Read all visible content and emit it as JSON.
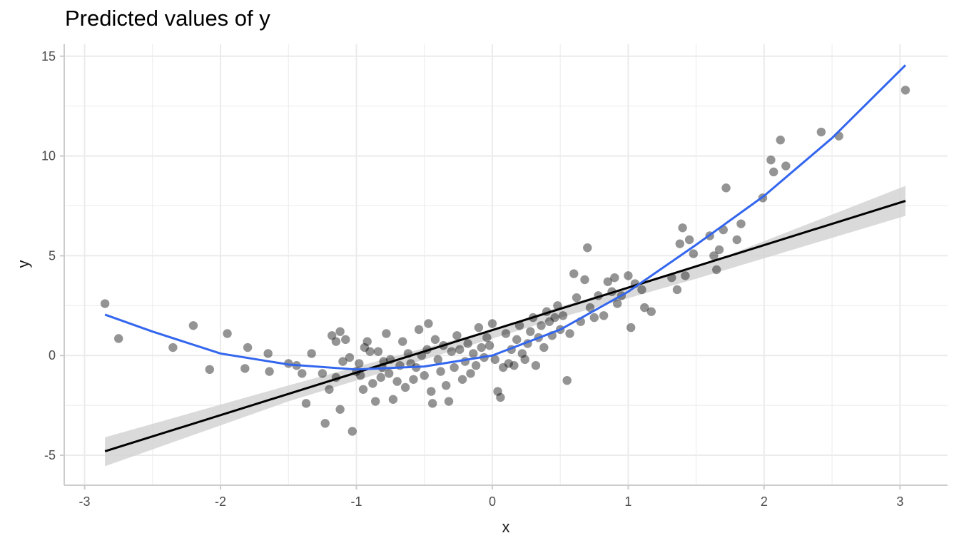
{
  "chart_data": {
    "type": "scatter",
    "title": "Predicted values of y",
    "xlabel": "x",
    "ylabel": "y",
    "xlim": [
      -3.15,
      3.35
    ],
    "ylim": [
      -6.5,
      15.6
    ],
    "x_ticks": [
      -3,
      -2,
      -1,
      0,
      1,
      2,
      3
    ],
    "x_tick_labels": [
      "-3",
      "-2",
      "-1",
      "0",
      "1",
      "2",
      "3"
    ],
    "y_ticks": [
      -5,
      0,
      5,
      10,
      15
    ],
    "y_tick_labels": [
      "-5",
      "0",
      "5",
      "10",
      "15"
    ],
    "grid": true,
    "colors": {
      "points": "#000000",
      "linear_fit": "#000000",
      "ribbon": "#d3d3d3",
      "polynomial_fit": "#3366ee",
      "grid": "#ebebeb",
      "axis": "#cccccc"
    },
    "points": [
      [
        -2.85,
        2.6
      ],
      [
        -2.75,
        0.85
      ],
      [
        -2.35,
        0.4
      ],
      [
        -2.2,
        1.5
      ],
      [
        -2.08,
        -0.7
      ],
      [
        -1.95,
        1.1
      ],
      [
        -1.82,
        -0.65
      ],
      [
        -1.8,
        0.4
      ],
      [
        -1.65,
        0.1
      ],
      [
        -1.64,
        -0.8
      ],
      [
        -1.5,
        -0.4
      ],
      [
        -1.44,
        -0.5
      ],
      [
        -1.4,
        -0.9
      ],
      [
        -1.37,
        -2.4
      ],
      [
        -1.33,
        0.1
      ],
      [
        -1.25,
        -0.9
      ],
      [
        -1.23,
        -3.4
      ],
      [
        -1.2,
        -1.7
      ],
      [
        -1.18,
        1.0
      ],
      [
        -1.15,
        0.7
      ],
      [
        -1.15,
        -1.1
      ],
      [
        -1.12,
        -2.7
      ],
      [
        -1.12,
        1.2
      ],
      [
        -1.1,
        -0.3
      ],
      [
        -1.08,
        0.8
      ],
      [
        -1.05,
        -0.1
      ],
      [
        -1.03,
        -3.8
      ],
      [
        -1.0,
        -0.8
      ],
      [
        -0.98,
        -0.4
      ],
      [
        -0.97,
        -1.0
      ],
      [
        -0.95,
        -1.7
      ],
      [
        -0.94,
        0.4
      ],
      [
        -0.92,
        0.7
      ],
      [
        -0.9,
        0.2
      ],
      [
        -0.88,
        -1.4
      ],
      [
        -0.86,
        -2.3
      ],
      [
        -0.84,
        0.2
      ],
      [
        -0.82,
        -1.1
      ],
      [
        -0.81,
        -0.6
      ],
      [
        -0.8,
        -0.3
      ],
      [
        -0.78,
        1.1
      ],
      [
        -0.76,
        -0.9
      ],
      [
        -0.75,
        -0.2
      ],
      [
        -0.73,
        -2.2
      ],
      [
        -0.7,
        -1.3
      ],
      [
        -0.68,
        -0.5
      ],
      [
        -0.66,
        0.7
      ],
      [
        -0.64,
        -1.6
      ],
      [
        -0.62,
        0.1
      ],
      [
        -0.6,
        -0.4
      ],
      [
        -0.58,
        -1.2
      ],
      [
        -0.56,
        -0.6
      ],
      [
        -0.54,
        1.3
      ],
      [
        -0.52,
        0.0
      ],
      [
        -0.5,
        -1.0
      ],
      [
        -0.48,
        0.3
      ],
      [
        -0.47,
        1.6
      ],
      [
        -0.45,
        -1.8
      ],
      [
        -0.44,
        -2.4
      ],
      [
        -0.42,
        0.8
      ],
      [
        -0.4,
        -0.2
      ],
      [
        -0.38,
        -0.8
      ],
      [
        -0.36,
        0.5
      ],
      [
        -0.34,
        -1.5
      ],
      [
        -0.32,
        -2.3
      ],
      [
        -0.3,
        0.2
      ],
      [
        -0.28,
        -0.6
      ],
      [
        -0.26,
        1.0
      ],
      [
        -0.24,
        0.3
      ],
      [
        -0.22,
        -1.2
      ],
      [
        -0.2,
        -0.3
      ],
      [
        -0.18,
        0.6
      ],
      [
        -0.16,
        -0.9
      ],
      [
        -0.14,
        0.1
      ],
      [
        -0.12,
        -0.5
      ],
      [
        -0.1,
        1.4
      ],
      [
        -0.08,
        0.4
      ],
      [
        -0.06,
        -0.1
      ],
      [
        -0.04,
        0.9
      ],
      [
        -0.02,
        0.5
      ],
      [
        0.0,
        1.6
      ],
      [
        0.02,
        -0.2
      ],
      [
        0.04,
        -1.8
      ],
      [
        0.06,
        -2.1
      ],
      [
        0.08,
        -0.6
      ],
      [
        0.1,
        1.1
      ],
      [
        0.12,
        -0.4
      ],
      [
        0.14,
        0.3
      ],
      [
        0.16,
        -0.5
      ],
      [
        0.18,
        0.8
      ],
      [
        0.2,
        1.5
      ],
      [
        0.22,
        0.1
      ],
      [
        0.24,
        -0.2
      ],
      [
        0.26,
        0.6
      ],
      [
        0.28,
        1.2
      ],
      [
        0.3,
        1.9
      ],
      [
        0.32,
        -0.5
      ],
      [
        0.34,
        0.9
      ],
      [
        0.36,
        1.5
      ],
      [
        0.38,
        0.4
      ],
      [
        0.4,
        2.2
      ],
      [
        0.42,
        1.7
      ],
      [
        0.44,
        1.0
      ],
      [
        0.46,
        1.9
      ],
      [
        0.48,
        2.5
      ],
      [
        0.5,
        1.3
      ],
      [
        0.52,
        2.0
      ],
      [
        0.55,
        -1.25
      ],
      [
        0.57,
        1.1
      ],
      [
        0.6,
        4.1
      ],
      [
        0.62,
        2.9
      ],
      [
        0.65,
        1.7
      ],
      [
        0.68,
        3.8
      ],
      [
        0.7,
        5.4
      ],
      [
        0.72,
        2.4
      ],
      [
        0.75,
        1.9
      ],
      [
        0.78,
        3.0
      ],
      [
        0.82,
        2.0
      ],
      [
        0.85,
        3.7
      ],
      [
        0.88,
        3.2
      ],
      [
        0.9,
        3.9
      ],
      [
        0.92,
        2.6
      ],
      [
        0.95,
        3.0
      ],
      [
        1.0,
        4.0
      ],
      [
        1.02,
        1.4
      ],
      [
        1.05,
        3.6
      ],
      [
        1.1,
        3.3
      ],
      [
        1.12,
        2.4
      ],
      [
        1.17,
        2.2
      ],
      [
        1.32,
        3.9
      ],
      [
        1.36,
        3.3
      ],
      [
        1.38,
        5.6
      ],
      [
        1.4,
        6.4
      ],
      [
        1.42,
        4.0
      ],
      [
        1.45,
        5.8
      ],
      [
        1.48,
        5.1
      ],
      [
        1.6,
        6.0
      ],
      [
        1.63,
        5.0
      ],
      [
        1.65,
        4.3
      ],
      [
        1.67,
        5.3
      ],
      [
        1.7,
        6.3
      ],
      [
        1.72,
        8.4
      ],
      [
        1.8,
        5.8
      ],
      [
        1.83,
        6.6
      ],
      [
        1.99,
        7.9
      ],
      [
        2.05,
        9.8
      ],
      [
        2.07,
        9.2
      ],
      [
        2.12,
        10.8
      ],
      [
        2.16,
        9.5
      ],
      [
        2.42,
        11.2
      ],
      [
        2.55,
        11.0
      ],
      [
        3.04,
        13.3
      ]
    ],
    "linear_fit": {
      "x": [
        -2.85,
        3.04
      ],
      "y": [
        -4.8,
        7.75
      ]
    },
    "linear_ci": {
      "x": [
        -2.85,
        -1.5,
        0.0,
        0.5,
        1.5,
        3.04
      ],
      "lower": [
        -5.55,
        -2.3,
        0.85,
        1.9,
        3.85,
        7.0
      ],
      "upper": [
        -4.1,
        -1.5,
        1.3,
        2.45,
        4.4,
        8.5
      ]
    },
    "polynomial_fit": {
      "x": [
        -2.85,
        -2.5,
        -2.0,
        -1.5,
        -1.0,
        -0.5,
        0.0,
        0.5,
        1.0,
        1.5,
        2.0,
        2.5,
        3.04
      ],
      "y": [
        2.05,
        1.2,
        0.1,
        -0.45,
        -0.7,
        -0.55,
        0.0,
        1.3,
        3.2,
        5.55,
        8.0,
        10.9,
        14.55
      ]
    }
  }
}
